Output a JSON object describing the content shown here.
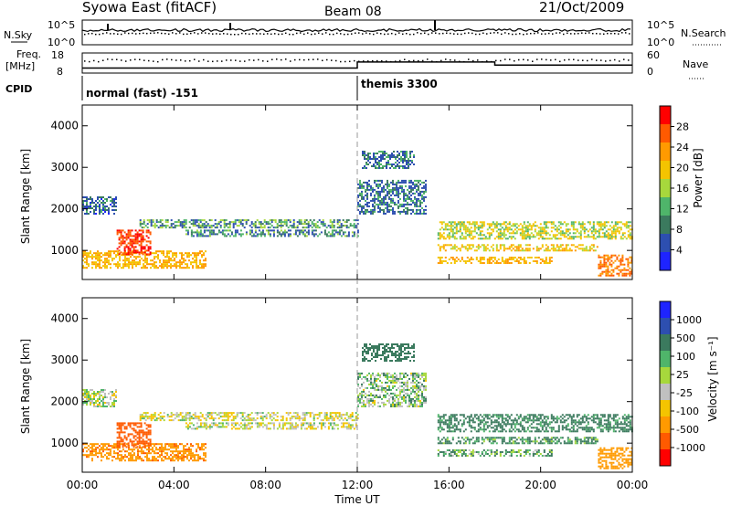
{
  "header": {
    "station": "Syowa East (fitACF)",
    "beam": "Beam 08",
    "date": "21/Oct/2009"
  },
  "top_panels": {
    "nsky_label": "N.Sky",
    "nsky_ticks": [
      "10^5",
      "10^0"
    ],
    "nsearch_label": "N.Search",
    "nsearch_ticks": [
      "10^5",
      "10^0"
    ],
    "freq_label": [
      "Freq.",
      "[MHz]"
    ],
    "freq_ticks": [
      "18",
      "8"
    ],
    "nave_label": "Nave",
    "nave_ticks": [
      "60",
      "0"
    ],
    "cpid_label": "CPID",
    "cpid_modes": [
      {
        "name": "normal (fast) -151",
        "start_hour": 0,
        "end_hour": 12
      },
      {
        "name": "themis 3300",
        "start_hour": 12,
        "end_hour": 24
      }
    ]
  },
  "x_axis": {
    "label": "Time UT",
    "ticks": [
      "00:00",
      "04:00",
      "08:00",
      "12:00",
      "16:00",
      "20:00",
      "00:00"
    ],
    "range_hours": [
      0,
      24
    ]
  },
  "power_panel": {
    "ylabel": "Slant Range [km]",
    "yticks": [
      "4000",
      "3000",
      "2000",
      "1000"
    ],
    "colorbar_label": "Power [dB]",
    "colorbar_ticks": [
      "28",
      "24",
      "20",
      "16",
      "12",
      "8",
      "4"
    ],
    "colors": [
      "#ff0000",
      "#ff5a00",
      "#ff9a00",
      "#f4c400",
      "#a7d83c",
      "#4fb56a",
      "#3b7a5e",
      "#2d4fb0",
      "#1e24ff"
    ]
  },
  "velocity_panel": {
    "ylabel": "Slant Range [km]",
    "yticks": [
      "4000",
      "3000",
      "2000",
      "1000"
    ],
    "colorbar_label": "Velocity [m s⁻¹]",
    "colorbar_ticks": [
      "1000",
      "500",
      "100",
      "25",
      "-25",
      "-100",
      "-500",
      "-1000"
    ],
    "colors": [
      "#1e24ff",
      "#2d4fb0",
      "#3b7a5e",
      "#4fb56a",
      "#a7d83c",
      "#c0c0c0",
      "#f4c400",
      "#ff9a00",
      "#ff5a00",
      "#ff0000"
    ]
  },
  "chart_data": {
    "type": "heatmap",
    "x_range_hours": [
      0,
      24
    ],
    "y_range_km": [
      300,
      4500
    ],
    "echo_bands": [
      {
        "start_hour": 0.0,
        "end_hour": 5.4,
        "range_km_min": 600,
        "range_km_max": 1000,
        "power_db": 18,
        "velocity": -250
      },
      {
        "start_hour": 1.5,
        "end_hour": 3.0,
        "range_km_min": 900,
        "range_km_max": 1500,
        "power_db": 26,
        "velocity": -600
      },
      {
        "start_hour": 2.5,
        "end_hour": 12.0,
        "range_km_min": 1550,
        "range_km_max": 1750,
        "power_db": 10,
        "velocity": 0
      },
      {
        "start_hour": 4.5,
        "end_hour": 12.0,
        "range_km_min": 1350,
        "range_km_max": 1500,
        "power_db": 9,
        "velocity": 0
      },
      {
        "start_hour": 0.0,
        "end_hour": 1.5,
        "range_km_min": 1900,
        "range_km_max": 2300,
        "power_db": 7,
        "velocity": 20
      },
      {
        "start_hour": 12.2,
        "end_hour": 14.5,
        "range_km_min": 3000,
        "range_km_max": 3400,
        "power_db": 8,
        "velocity": 200
      },
      {
        "start_hour": 12.0,
        "end_hour": 15.0,
        "range_km_min": 1900,
        "range_km_max": 2700,
        "power_db": 8,
        "velocity": 50
      },
      {
        "start_hour": 15.5,
        "end_hour": 24.0,
        "range_km_min": 1300,
        "range_km_max": 1700,
        "power_db": 14,
        "velocity": 150
      },
      {
        "start_hour": 15.5,
        "end_hour": 22.5,
        "range_km_min": 1000,
        "range_km_max": 1150,
        "power_db": 16,
        "velocity": 120
      },
      {
        "start_hour": 15.5,
        "end_hour": 20.5,
        "range_km_min": 700,
        "range_km_max": 850,
        "power_db": 18,
        "velocity": 80
      },
      {
        "start_hour": 22.5,
        "end_hour": 24.0,
        "range_km_min": 400,
        "range_km_max": 900,
        "power_db": 22,
        "velocity": -200
      }
    ],
    "frequency_mhz": [
      {
        "start_hour": 0,
        "end_hour": 12,
        "value": 10.5
      },
      {
        "start_hour": 12,
        "end_hour": 18,
        "value": 13.5
      },
      {
        "start_hour": 18,
        "end_hour": 24,
        "value": 12.0
      }
    ]
  }
}
